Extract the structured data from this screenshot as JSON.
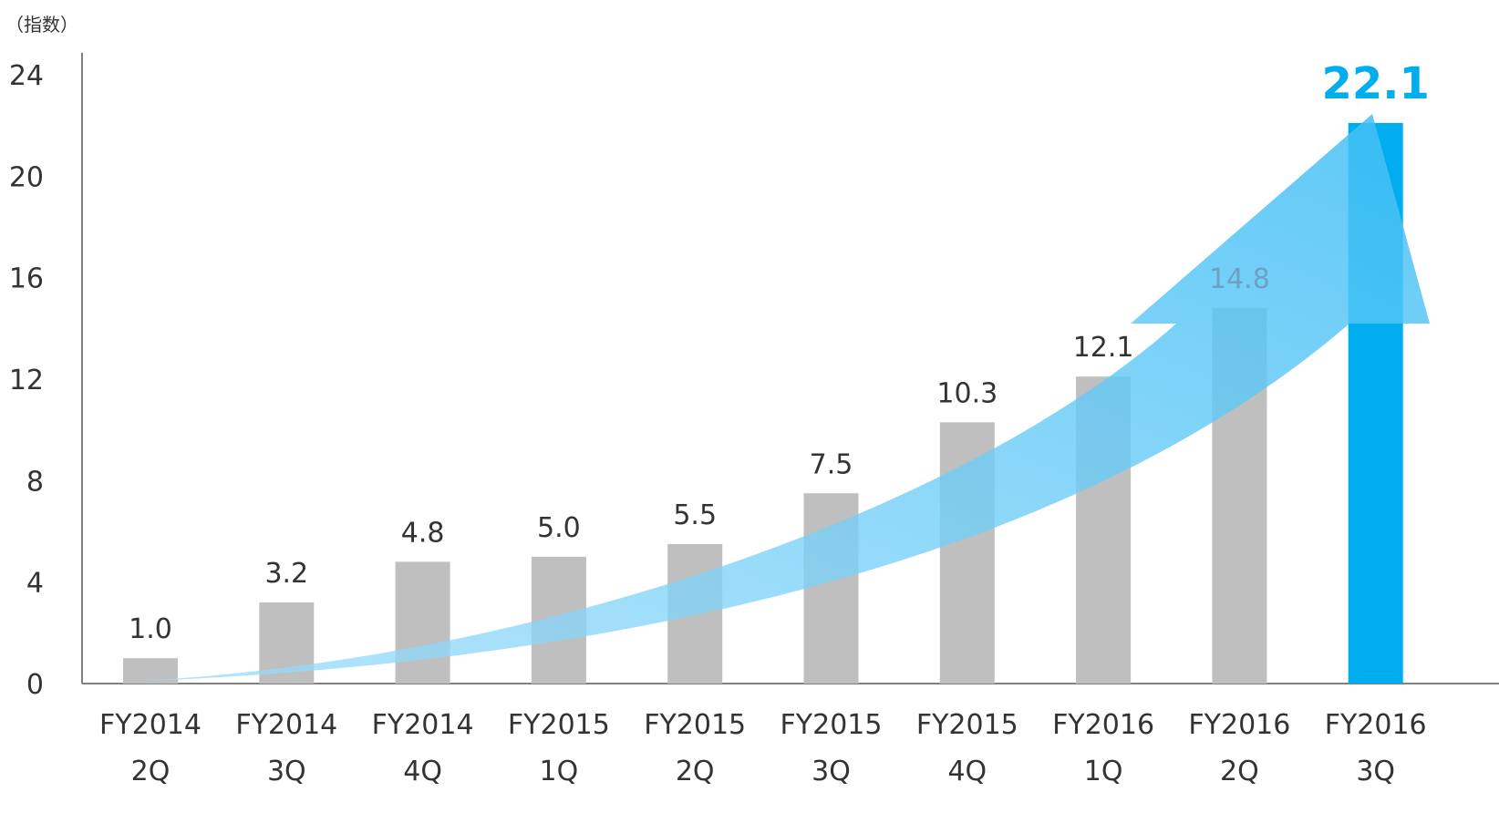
{
  "chart_data": {
    "type": "bar",
    "unit_label": "（指数）",
    "categories": [
      [
        "FY2014",
        "2Q"
      ],
      [
        "FY2014",
        "3Q"
      ],
      [
        "FY2014",
        "4Q"
      ],
      [
        "FY2015",
        "1Q"
      ],
      [
        "FY2015",
        "2Q"
      ],
      [
        "FY2015",
        "3Q"
      ],
      [
        "FY2015",
        "4Q"
      ],
      [
        "FY2016",
        "1Q"
      ],
      [
        "FY2016",
        "2Q"
      ],
      [
        "FY2016",
        "3Q"
      ]
    ],
    "values": [
      1.0,
      3.2,
      4.8,
      5.0,
      5.5,
      7.5,
      10.3,
      12.1,
      14.8,
      22.1
    ],
    "value_labels": [
      "1.0",
      "3.2",
      "4.8",
      "5.0",
      "5.5",
      "7.5",
      "10.3",
      "12.1",
      "14.8",
      "22.1"
    ],
    "ylim": [
      0,
      24
    ],
    "yticks": [
      0,
      4,
      8,
      12,
      16,
      20,
      24
    ],
    "grid": false,
    "highlight_index": 9,
    "colors": {
      "bar": "#bfbfbf",
      "highlight_bar": "#00aeef",
      "highlight_label": "#00aeef",
      "arrow": "#7fcff6",
      "axis": "#808080",
      "text": "#333333",
      "faded_label": "#6fa0c4"
    },
    "annotation": "upward-growth-arrow"
  }
}
